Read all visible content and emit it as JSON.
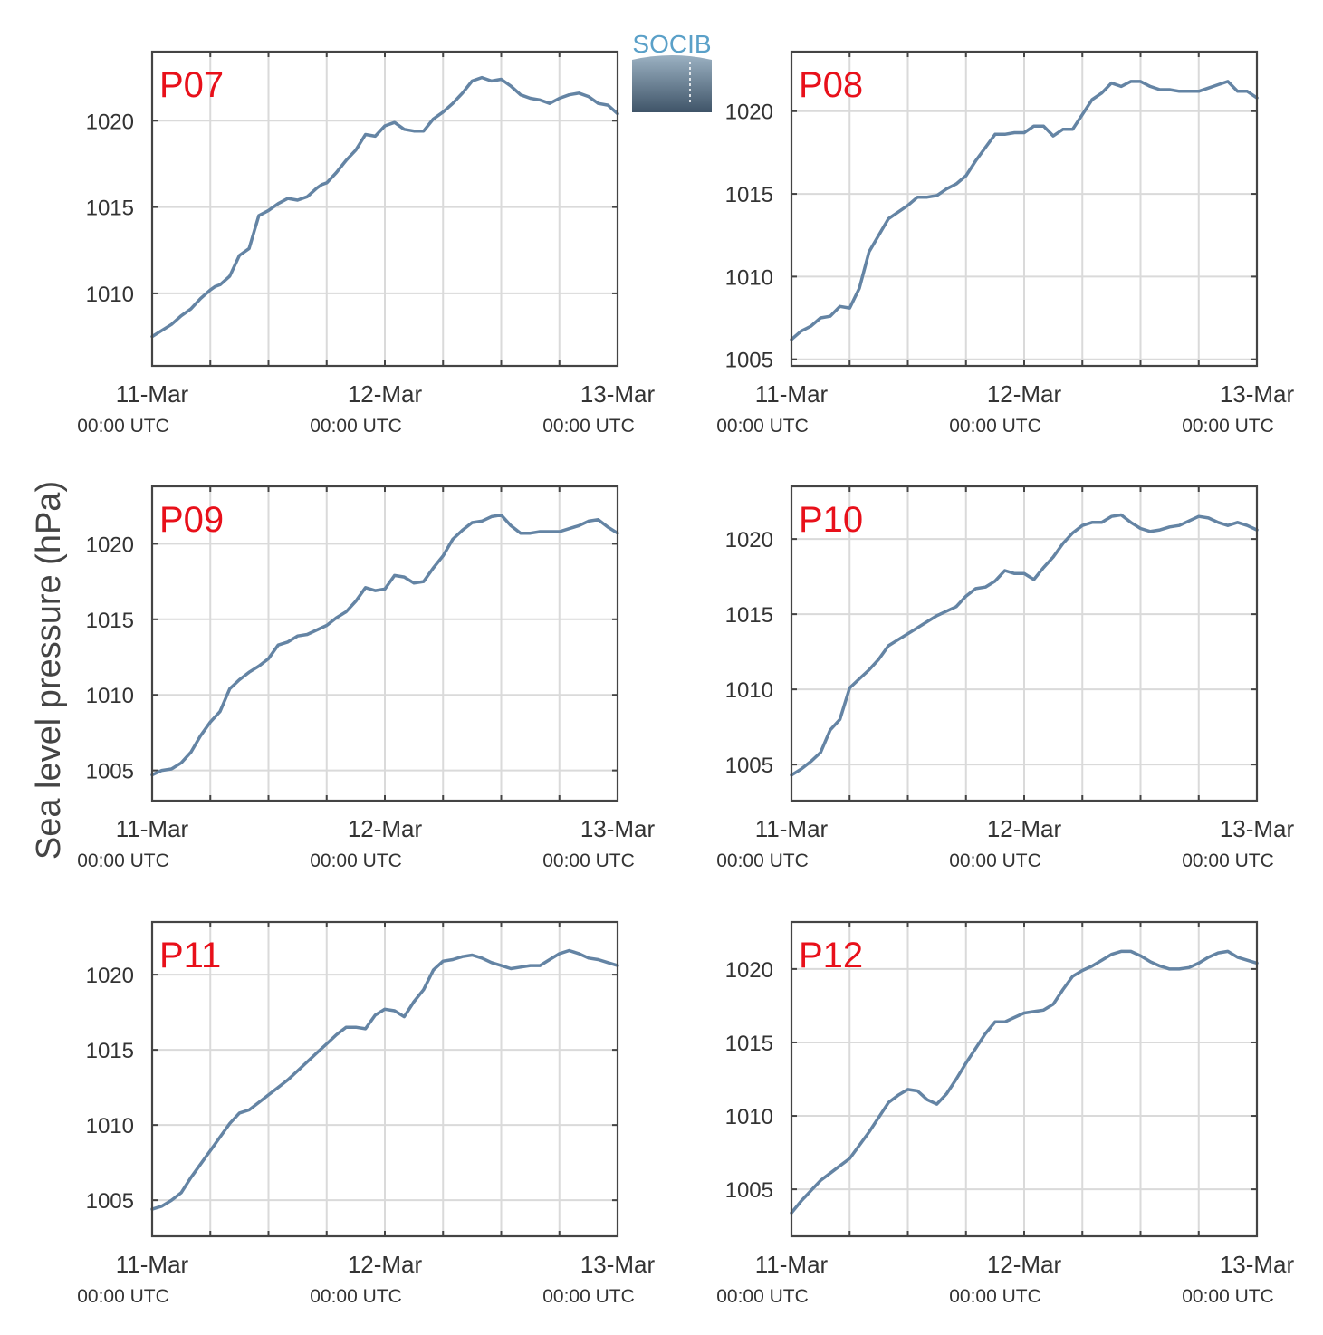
{
  "figure": {
    "ylabel": "Sea level pressure (hPa)",
    "logo_text": "SOCIB",
    "line_color": "#6484a4",
    "label_color": "#e8101a",
    "grid": true
  },
  "chart_data": [
    {
      "type": "line",
      "panel_label": "P07",
      "x_ticks": [
        {
          "day": "11-Mar",
          "time": "00:00 UTC"
        },
        {
          "day": "12-Mar",
          "time": "00:00 UTC"
        },
        {
          "day": "13-Mar",
          "time": "00:00 UTC"
        }
      ],
      "y_ticks": [
        1010,
        1015,
        1020
      ],
      "xlim_hours": [
        0,
        48
      ],
      "ylim": [
        1005.8,
        1024
      ],
      "series": [
        {
          "x_hours": [
            0,
            2,
            3,
            4,
            5,
            6,
            6.5,
            7,
            8,
            9,
            10,
            11,
            12,
            13,
            14,
            15,
            16,
            17,
            17.5,
            18,
            19,
            20,
            21,
            22,
            23,
            24,
            25,
            26,
            27,
            28,
            29,
            30,
            31,
            32,
            33,
            34,
            35,
            36,
            37,
            38,
            39,
            40,
            41,
            42,
            43,
            44,
            45,
            46,
            47,
            48
          ],
          "values": [
            1007.5,
            1008.2,
            1008.7,
            1009.1,
            1009.7,
            1010.2,
            1010.4,
            1010.5,
            1011,
            1012.2,
            1012.6,
            1014.5,
            1014.8,
            1015.2,
            1015.5,
            1015.4,
            1015.6,
            1016.1,
            1016.3,
            1016.4,
            1017,
            1017.7,
            1018.3,
            1019.2,
            1019.1,
            1019.7,
            1019.9,
            1019.5,
            1019.4,
            1019.4,
            1020.1,
            1020.5,
            1021,
            1021.6,
            1022.3,
            1022.5,
            1022.3,
            1022.4,
            1022,
            1021.5,
            1021.3,
            1021.2,
            1021,
            1021.3,
            1021.5,
            1021.6,
            1021.4,
            1021,
            1020.9,
            1020.4
          ]
        }
      ]
    },
    {
      "type": "line",
      "panel_label": "P08",
      "x_ticks": [
        {
          "day": "11-Mar",
          "time": "00:00 UTC"
        },
        {
          "day": "12-Mar",
          "time": "00:00 UTC"
        },
        {
          "day": "13-Mar",
          "time": "00:00 UTC"
        }
      ],
      "y_ticks": [
        1005,
        1010,
        1015,
        1020
      ],
      "xlim_hours": [
        0,
        48
      ],
      "ylim": [
        1004.6,
        1023.6
      ],
      "series": [
        {
          "x_hours": [
            0,
            1,
            2,
            3,
            4,
            5,
            6,
            7,
            8,
            9,
            10,
            11,
            12,
            13,
            14,
            15,
            16,
            17,
            18,
            19,
            20,
            21,
            22,
            23,
            24,
            25,
            26,
            27,
            28,
            29,
            30,
            31,
            32,
            33,
            34,
            35,
            36,
            37,
            38,
            39,
            40,
            41,
            42,
            43,
            44,
            45,
            46,
            47,
            48
          ],
          "values": [
            1006.2,
            1006.7,
            1007,
            1007.5,
            1007.6,
            1008.2,
            1008.1,
            1009.3,
            1011.5,
            1012.5,
            1013.5,
            1013.9,
            1014.3,
            1014.8,
            1014.8,
            1014.9,
            1015.3,
            1015.6,
            1016.1,
            1017,
            1017.8,
            1018.6,
            1018.6,
            1018.7,
            1018.7,
            1019.1,
            1019.1,
            1018.5,
            1018.9,
            1018.9,
            1019.8,
            1020.7,
            1021.1,
            1021.7,
            1021.5,
            1021.8,
            1021.8,
            1021.5,
            1021.3,
            1021.3,
            1021.2,
            1021.2,
            1021.2,
            1021.4,
            1021.6,
            1021.8,
            1021.2,
            1021.2,
            1020.8
          ]
        }
      ]
    },
    {
      "type": "line",
      "panel_label": "P09",
      "x_ticks": [
        {
          "day": "11-Mar",
          "time": "00:00 UTC"
        },
        {
          "day": "12-Mar",
          "time": "00:00 UTC"
        },
        {
          "day": "13-Mar",
          "time": "00:00 UTC"
        }
      ],
      "y_ticks": [
        1005,
        1010,
        1015,
        1020
      ],
      "xlim_hours": [
        0,
        48
      ],
      "ylim": [
        1003,
        1023.8
      ],
      "series": [
        {
          "x_hours": [
            0,
            1,
            2,
            3,
            4,
            5,
            6,
            7,
            8,
            9,
            10,
            11,
            12,
            13,
            14,
            15,
            16,
            17,
            18,
            19,
            20,
            21,
            22,
            23,
            24,
            25,
            26,
            27,
            28,
            29,
            30,
            31,
            32,
            33,
            34,
            35,
            36,
            37,
            38,
            39,
            40,
            41,
            42,
            43,
            44,
            45,
            46,
            47,
            48
          ],
          "values": [
            1004.7,
            1005,
            1005.1,
            1005.5,
            1006.2,
            1007.3,
            1008.2,
            1008.9,
            1010.4,
            1011,
            1011.5,
            1011.9,
            1012.4,
            1013.3,
            1013.5,
            1013.9,
            1014,
            1014.3,
            1014.6,
            1015.1,
            1015.5,
            1016.2,
            1017.1,
            1016.9,
            1017,
            1017.9,
            1017.8,
            1017.4,
            1017.5,
            1018.4,
            1019.2,
            1020.3,
            1020.9,
            1021.4,
            1021.5,
            1021.8,
            1021.9,
            1021.2,
            1020.7,
            1020.7,
            1020.8,
            1020.8,
            1020.8,
            1021,
            1021.2,
            1021.5,
            1021.6,
            1021.1,
            1020.7
          ]
        }
      ]
    },
    {
      "type": "line",
      "panel_label": "P10",
      "x_ticks": [
        {
          "day": "11-Mar",
          "time": "00:00 UTC"
        },
        {
          "day": "12-Mar",
          "time": "00:00 UTC"
        },
        {
          "day": "13-Mar",
          "time": "00:00 UTC"
        }
      ],
      "y_ticks": [
        1005,
        1010,
        1015,
        1020
      ],
      "xlim_hours": [
        0,
        48
      ],
      "ylim": [
        1002.6,
        1023.5
      ],
      "series": [
        {
          "x_hours": [
            0,
            1,
            2,
            3,
            4,
            5,
            6,
            7,
            8,
            9,
            10,
            11,
            12,
            13,
            14,
            15,
            16,
            17,
            18,
            19,
            20,
            21,
            22,
            23,
            24,
            25,
            26,
            27,
            28,
            29,
            30,
            31,
            32,
            33,
            34,
            35,
            36,
            37,
            38,
            39,
            40,
            41,
            42,
            43,
            44,
            45,
            46,
            47,
            48
          ],
          "values": [
            1004.3,
            1004.7,
            1005.2,
            1005.8,
            1007.3,
            1008,
            1010.1,
            1010.7,
            1011.3,
            1012,
            1012.9,
            1013.3,
            1013.7,
            1014.1,
            1014.5,
            1014.9,
            1015.2,
            1015.5,
            1016.2,
            1016.7,
            1016.8,
            1017.2,
            1017.9,
            1017.7,
            1017.7,
            1017.3,
            1018.1,
            1018.8,
            1019.7,
            1020.4,
            1020.9,
            1021.1,
            1021.1,
            1021.5,
            1021.6,
            1021.1,
            1020.7,
            1020.5,
            1020.6,
            1020.8,
            1020.9,
            1021.2,
            1021.5,
            1021.4,
            1021.1,
            1020.9,
            1021.1,
            1020.9,
            1020.6
          ]
        }
      ]
    },
    {
      "type": "line",
      "panel_label": "P11",
      "x_ticks": [
        {
          "day": "11-Mar",
          "time": "00:00 UTC"
        },
        {
          "day": "12-Mar",
          "time": "00:00 UTC"
        },
        {
          "day": "13-Mar",
          "time": "00:00 UTC"
        }
      ],
      "y_ticks": [
        1005,
        1010,
        1015,
        1020
      ],
      "xlim_hours": [
        0,
        48
      ],
      "ylim": [
        1002.6,
        1023.5
      ],
      "series": [
        {
          "x_hours": [
            0,
            1,
            2,
            3,
            4,
            5,
            6,
            7,
            8,
            9,
            10,
            11,
            12,
            13,
            14,
            15,
            16,
            17,
            18,
            19,
            20,
            21,
            22,
            23,
            24,
            25,
            26,
            27,
            28,
            29,
            30,
            31,
            32,
            33,
            34,
            35,
            36,
            37,
            38,
            39,
            40,
            41,
            42,
            43,
            44,
            45,
            46,
            47,
            48
          ],
          "values": [
            1004.4,
            1004.6,
            1005,
            1005.5,
            1006.5,
            1007.4,
            1008.3,
            1009.2,
            1010.1,
            1010.8,
            1011,
            1011.5,
            1012,
            1012.5,
            1013,
            1013.6,
            1014.2,
            1014.8,
            1015.4,
            1016,
            1016.5,
            1016.5,
            1016.4,
            1017.3,
            1017.7,
            1017.6,
            1017.2,
            1018.2,
            1019,
            1020.3,
            1020.9,
            1021,
            1021.2,
            1021.3,
            1021.1,
            1020.8,
            1020.6,
            1020.4,
            1020.5,
            1020.6,
            1020.6,
            1021,
            1021.4,
            1021.6,
            1021.4,
            1021.1,
            1021,
            1020.8,
            1020.6
          ]
        }
      ]
    },
    {
      "type": "line",
      "panel_label": "P12",
      "x_ticks": [
        {
          "day": "11-Mar",
          "time": "00:00 UTC"
        },
        {
          "day": "12-Mar",
          "time": "00:00 UTC"
        },
        {
          "day": "13-Mar",
          "time": "00:00 UTC"
        }
      ],
      "y_ticks": [
        1005,
        1010,
        1015,
        1020
      ],
      "xlim_hours": [
        0,
        48
      ],
      "ylim": [
        1001.8,
        1023.2
      ],
      "series": [
        {
          "x_hours": [
            0,
            1,
            2,
            3,
            4,
            5,
            6,
            7,
            8,
            9,
            10,
            11,
            12,
            13,
            14,
            15,
            16,
            17,
            18,
            19,
            20,
            21,
            22,
            23,
            24,
            25,
            26,
            27,
            28,
            29,
            30,
            31,
            32,
            33,
            34,
            35,
            36,
            37,
            38,
            39,
            40,
            41,
            42,
            43,
            44,
            45,
            46,
            47,
            48
          ],
          "values": [
            1003.4,
            1004.2,
            1004.9,
            1005.6,
            1006.1,
            1006.6,
            1007.1,
            1008,
            1008.9,
            1009.9,
            1010.9,
            1011.4,
            1011.8,
            1011.7,
            1011.1,
            1010.8,
            1011.5,
            1012.5,
            1013.6,
            1014.6,
            1015.6,
            1016.4,
            1016.4,
            1016.7,
            1017,
            1017.1,
            1017.2,
            1017.6,
            1018.6,
            1019.5,
            1019.9,
            1020.2,
            1020.6,
            1021,
            1021.2,
            1021.2,
            1020.9,
            1020.5,
            1020.2,
            1020,
            1020,
            1020.1,
            1020.4,
            1020.8,
            1021.1,
            1021.2,
            1020.8,
            1020.6,
            1020.4
          ]
        }
      ]
    }
  ]
}
